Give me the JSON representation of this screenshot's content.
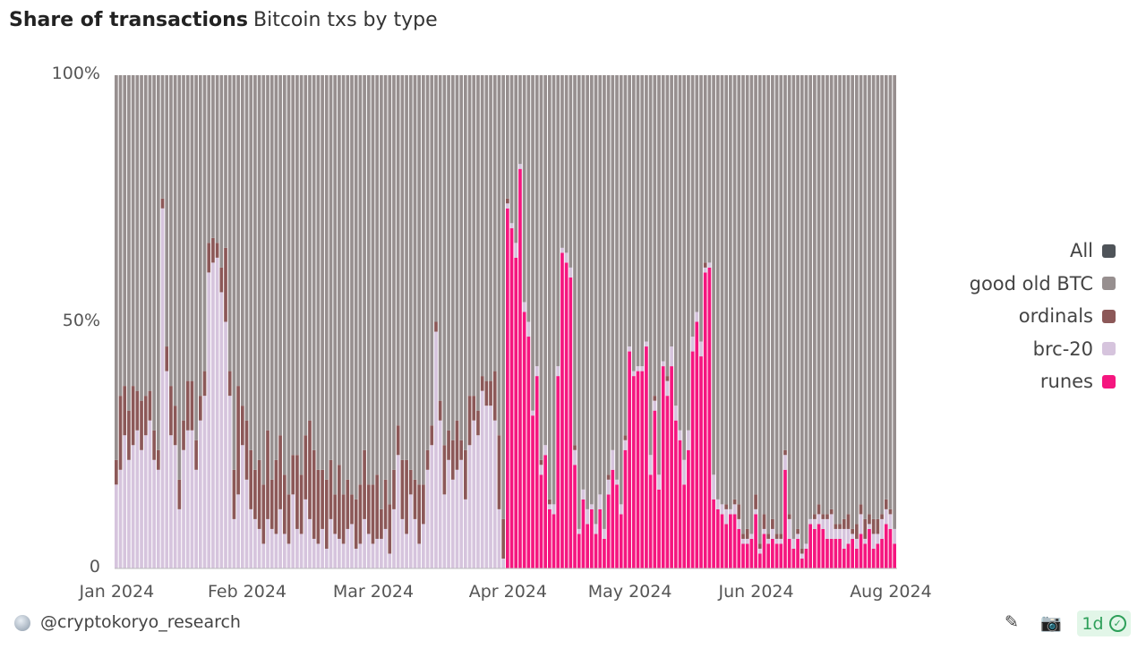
{
  "header": {
    "title": "Share of transactions",
    "subtitle": "Bitcoin txs by type"
  },
  "footer": {
    "author": "@cryptokoryo_research",
    "refresh_label": "1d",
    "icons": [
      "avatar",
      "edit-icon",
      "camera-icon",
      "refresh-check-icon"
    ]
  },
  "chart_data": {
    "type": "bar",
    "stacked": true,
    "normalized": true,
    "x_range": [
      "2024-01-01",
      "2024-07-04"
    ],
    "x_frequency": "daily",
    "ylim": [
      0,
      100
    ],
    "y_ticks": [
      {
        "label": "0",
        "value": 0
      },
      {
        "label": "50%",
        "value": 50
      },
      {
        "label": "100%",
        "value": 100
      }
    ],
    "x_ticks": [
      {
        "label": "Jan 2024",
        "date": "2024-01-01"
      },
      {
        "label": "Feb 2024",
        "date": "2024-02-01"
      },
      {
        "label": "Mar 2024",
        "date": "2024-03-02"
      },
      {
        "label": "Apr 2024",
        "date": "2024-04-03"
      },
      {
        "label": "May 2024",
        "date": "2024-05-02"
      },
      {
        "label": "Jun 2024",
        "date": "2024-06-01"
      },
      {
        "label": "Aug 2024",
        "date": "2024-07-03"
      }
    ],
    "legend_position": "right",
    "legend": [
      {
        "name": "All",
        "color": "#4f5459"
      },
      {
        "name": "good old BTC",
        "color": "#978f8f"
      },
      {
        "name": "ordinals",
        "color": "#8c5858"
      },
      {
        "name": "brc-20",
        "color": "#d6c4dd"
      },
      {
        "name": "runes",
        "color": "#f5167f"
      }
    ],
    "series": [
      {
        "name": "runes",
        "color": "#f5167f",
        "values": [
          0,
          0,
          0,
          0,
          0,
          0,
          0,
          0,
          0,
          0,
          0,
          0,
          0,
          0,
          0,
          0,
          0,
          0,
          0,
          0,
          0,
          0,
          0,
          0,
          0,
          0,
          0,
          0,
          0,
          0,
          0,
          0,
          0,
          0,
          0,
          0,
          0,
          0,
          0,
          0,
          0,
          0,
          0,
          0,
          0,
          0,
          0,
          0,
          0,
          0,
          0,
          0,
          0,
          0,
          0,
          0,
          0,
          0,
          0,
          0,
          0,
          0,
          0,
          0,
          0,
          0,
          0,
          0,
          0,
          0,
          0,
          0,
          0,
          0,
          0,
          0,
          0,
          0,
          0,
          0,
          0,
          0,
          0,
          0,
          0,
          0,
          0,
          0,
          0,
          0,
          0,
          0,
          0,
          73,
          69,
          63,
          81,
          52,
          47,
          31,
          39,
          19,
          23,
          12,
          11,
          39,
          64,
          62,
          59,
          21,
          7,
          14,
          9,
          12,
          7,
          12,
          6,
          15,
          20,
          17,
          11,
          24,
          44,
          39,
          40,
          40,
          45,
          19,
          32,
          16,
          41,
          35,
          41,
          30,
          26,
          17,
          24,
          44,
          50,
          43,
          60,
          61,
          14,
          12,
          11,
          9,
          11,
          11,
          8,
          5,
          5,
          6,
          11,
          3,
          7,
          5,
          6,
          5,
          5,
          20,
          6,
          4,
          6,
          2,
          4,
          9,
          8,
          9,
          8,
          6,
          6,
          6,
          6,
          4,
          5,
          6,
          4,
          7,
          5,
          8,
          4,
          5,
          6,
          9,
          8,
          5
        ]
      },
      {
        "name": "brc-20",
        "color": "#d6c4dd",
        "values": [
          17,
          20,
          27,
          22,
          25,
          28,
          24,
          27,
          30,
          22,
          20,
          73,
          40,
          27,
          25,
          12,
          24,
          28,
          28,
          20,
          30,
          35,
          60,
          62,
          63,
          56,
          50,
          35,
          10,
          15,
          25,
          18,
          12,
          10,
          8,
          5,
          10,
          8,
          7,
          12,
          7,
          5,
          15,
          8,
          7,
          14,
          10,
          6,
          5,
          8,
          4,
          10,
          7,
          6,
          5,
          8,
          9,
          4,
          5,
          10,
          7,
          5,
          6,
          6,
          8,
          3,
          12,
          23,
          10,
          7,
          15,
          10,
          5,
          9,
          20,
          25,
          48,
          30,
          15,
          22,
          18,
          20,
          22,
          14,
          25,
          30,
          27,
          36,
          33,
          33,
          30,
          12,
          2,
          1,
          1,
          3,
          1,
          2,
          3,
          1,
          2,
          2,
          2,
          1,
          2,
          2,
          1,
          2,
          2,
          3,
          1,
          2,
          3,
          1,
          2,
          3,
          2,
          3,
          4,
          1,
          2,
          2,
          1,
          1,
          1,
          1,
          1,
          4,
          2,
          3,
          1,
          3,
          4,
          3,
          2,
          5,
          4,
          3,
          2,
          3,
          1,
          1,
          5,
          2,
          2,
          3,
          1,
          2,
          2,
          1,
          1,
          1,
          1,
          1,
          1,
          1,
          2,
          1,
          1,
          3,
          4,
          2,
          1,
          1,
          1,
          1,
          2,
          2,
          2,
          4,
          5,
          2,
          2,
          4,
          3,
          1,
          2,
          4,
          1,
          1,
          3,
          2,
          4,
          3,
          3,
          3
        ]
      },
      {
        "name": "ordinals",
        "color": "#8c5858",
        "values": [
          5,
          15,
          10,
          10,
          12,
          8,
          10,
          8,
          6,
          6,
          4,
          2,
          5,
          10,
          8,
          6,
          6,
          10,
          10,
          6,
          5,
          5,
          6,
          5,
          3,
          5,
          15,
          5,
          10,
          22,
          8,
          12,
          12,
          10,
          14,
          12,
          18,
          10,
          15,
          15,
          12,
          10,
          8,
          15,
          12,
          13,
          20,
          18,
          15,
          12,
          14,
          12,
          8,
          15,
          10,
          10,
          6,
          10,
          12,
          14,
          10,
          12,
          13,
          6,
          10,
          10,
          8,
          6,
          12,
          15,
          5,
          8,
          12,
          8,
          4,
          4,
          2,
          4,
          10,
          6,
          8,
          10,
          4,
          10,
          10,
          5,
          5,
          3,
          5,
          5,
          10,
          15,
          8,
          1,
          0,
          0,
          0,
          0,
          0,
          0,
          0,
          1,
          0,
          1,
          0,
          0,
          0,
          0,
          0,
          1,
          0,
          0,
          0,
          0,
          0,
          0,
          0,
          1,
          0,
          0,
          0,
          1,
          0,
          0,
          0,
          0,
          0,
          0,
          1,
          0,
          0,
          1,
          0,
          0,
          0,
          0,
          0,
          0,
          0,
          0,
          1,
          0,
          0,
          0,
          0,
          1,
          0,
          1,
          3,
          1,
          2,
          0,
          3,
          1,
          3,
          1,
          2,
          1,
          1,
          1,
          1,
          0,
          1,
          1,
          0,
          0,
          1,
          2,
          1,
          1,
          1,
          1,
          1,
          2,
          3,
          1,
          3,
          2,
          4,
          2,
          3,
          3,
          1,
          2,
          1,
          0
        ]
      },
      {
        "name": "good old BTC",
        "color": "#978f8f",
        "values_rule": "remainder to 100%"
      }
    ]
  }
}
